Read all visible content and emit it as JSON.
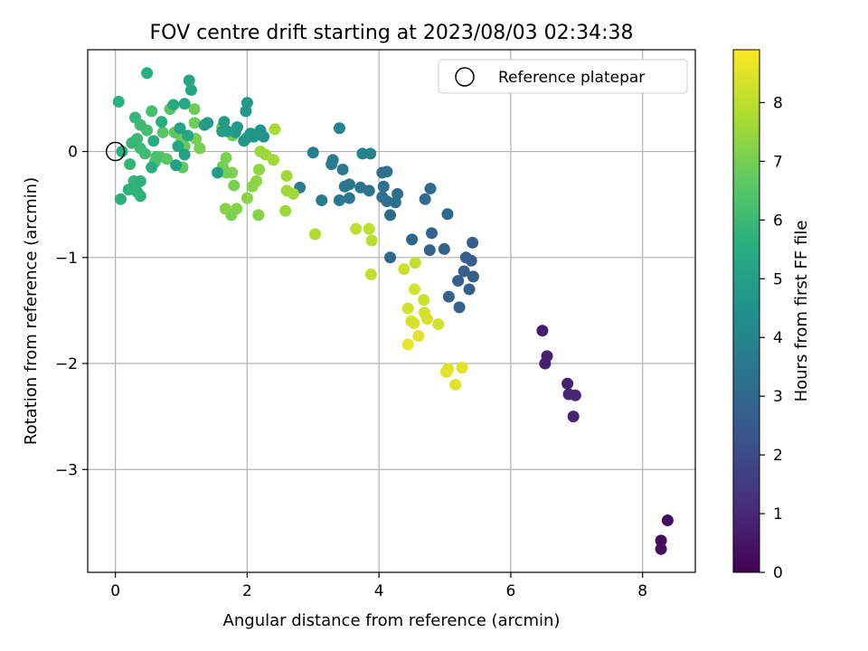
{
  "chart_data": {
    "type": "scatter",
    "title": "FOV centre drift starting at 2023/08/03 02:34:38",
    "xlabel": "Angular distance from reference (arcmin)",
    "ylabel": "Rotation from reference (arcmin)",
    "colorbar_label": "Hours from first FF file",
    "xlim": [
      -0.42,
      8.8
    ],
    "ylim": [
      -3.97,
      0.96
    ],
    "xticks": [
      0,
      2,
      4,
      6,
      8
    ],
    "yticks": [
      0,
      -1,
      -2,
      -3
    ],
    "colorbar_range": [
      0,
      8.9
    ],
    "colorbar_ticks": [
      0,
      1,
      2,
      3,
      4,
      5,
      6,
      7,
      8
    ],
    "grid": true,
    "colormap": "viridis",
    "legend": {
      "position": "top-right",
      "label": "Reference platepar"
    },
    "reference_point": {
      "x": 0,
      "y": 0
    },
    "points": [
      {
        "x": 8.38,
        "y": -3.48,
        "h": 0.3
      },
      {
        "x": 8.28,
        "y": -3.67,
        "h": 0.3
      },
      {
        "x": 8.28,
        "y": -3.75,
        "h": 0.3
      },
      {
        "x": 6.48,
        "y": -1.69,
        "h": 0.7
      },
      {
        "x": 6.55,
        "y": -1.93,
        "h": 0.8
      },
      {
        "x": 6.52,
        "y": -2.0,
        "h": 0.8
      },
      {
        "x": 6.86,
        "y": -2.19,
        "h": 0.8
      },
      {
        "x": 6.88,
        "y": -2.29,
        "h": 0.9
      },
      {
        "x": 6.98,
        "y": -2.3,
        "h": 0.9
      },
      {
        "x": 6.95,
        "y": -2.5,
        "h": 0.9
      },
      {
        "x": 5.42,
        "y": -0.86,
        "h": 2.6
      },
      {
        "x": 5.32,
        "y": -1.0,
        "h": 2.6
      },
      {
        "x": 5.4,
        "y": -1.03,
        "h": 2.6
      },
      {
        "x": 5.29,
        "y": -1.13,
        "h": 2.7
      },
      {
        "x": 5.43,
        "y": -1.18,
        "h": 2.7
      },
      {
        "x": 5.2,
        "y": -1.22,
        "h": 2.7
      },
      {
        "x": 5.37,
        "y": -1.3,
        "h": 2.7
      },
      {
        "x": 5.06,
        "y": -1.37,
        "h": 2.8
      },
      {
        "x": 5.22,
        "y": -1.47,
        "h": 2.8
      },
      {
        "x": 4.99,
        "y": -0.92,
        "h": 2.8
      },
      {
        "x": 4.77,
        "y": -0.93,
        "h": 2.8
      },
      {
        "x": 4.8,
        "y": -0.77,
        "h": 2.9
      },
      {
        "x": 4.5,
        "y": -0.83,
        "h": 2.9
      },
      {
        "x": 5.04,
        "y": -0.59,
        "h": 3.0
      },
      {
        "x": 4.17,
        "y": -1.0,
        "h": 3.0
      },
      {
        "x": 4.7,
        "y": -0.45,
        "h": 3.1
      },
      {
        "x": 4.78,
        "y": -0.35,
        "h": 3.1
      },
      {
        "x": 4.17,
        "y": -0.6,
        "h": 3.1
      },
      {
        "x": 4.25,
        "y": -0.48,
        "h": 3.2
      },
      {
        "x": 4.28,
        "y": -0.4,
        "h": 3.2
      },
      {
        "x": 4.05,
        "y": -0.43,
        "h": 3.2
      },
      {
        "x": 4.12,
        "y": -0.47,
        "h": 3.3
      },
      {
        "x": 4.07,
        "y": -0.33,
        "h": 3.3
      },
      {
        "x": 4.05,
        "y": -0.2,
        "h": 3.3
      },
      {
        "x": 4.12,
        "y": -0.19,
        "h": 3.3
      },
      {
        "x": 3.85,
        "y": -0.37,
        "h": 3.4
      },
      {
        "x": 3.72,
        "y": -0.34,
        "h": 3.4
      },
      {
        "x": 3.55,
        "y": -0.31,
        "h": 3.5
      },
      {
        "x": 3.48,
        "y": -0.33,
        "h": 3.5
      },
      {
        "x": 3.55,
        "y": -0.44,
        "h": 3.5
      },
      {
        "x": 3.4,
        "y": -0.46,
        "h": 3.6
      },
      {
        "x": 3.45,
        "y": -0.17,
        "h": 3.6
      },
      {
        "x": 3.3,
        "y": -0.08,
        "h": 3.6
      },
      {
        "x": 3.28,
        "y": -0.12,
        "h": 3.7
      },
      {
        "x": 3.13,
        "y": -0.46,
        "h": 3.7
      },
      {
        "x": 3.0,
        "y": -0.01,
        "h": 3.8
      },
      {
        "x": 2.8,
        "y": -0.34,
        "h": 3.8
      },
      {
        "x": 3.4,
        "y": 0.22,
        "h": 4.0
      },
      {
        "x": 3.75,
        "y": -0.02,
        "h": 4.0
      },
      {
        "x": 3.87,
        "y": -0.02,
        "h": 4.0
      },
      {
        "x": 5.16,
        "y": -2.2,
        "h": 8.5
      },
      {
        "x": 5.02,
        "y": -2.08,
        "h": 8.5
      },
      {
        "x": 5.05,
        "y": -2.05,
        "h": 8.5
      },
      {
        "x": 5.26,
        "y": -2.04,
        "h": 8.5
      },
      {
        "x": 4.6,
        "y": -1.74,
        "h": 8.5
      },
      {
        "x": 4.44,
        "y": -1.82,
        "h": 8.6
      },
      {
        "x": 4.49,
        "y": -1.6,
        "h": 8.4
      },
      {
        "x": 4.53,
        "y": -1.62,
        "h": 8.4
      },
      {
        "x": 4.73,
        "y": -1.58,
        "h": 8.4
      },
      {
        "x": 4.69,
        "y": -1.52,
        "h": 8.3
      },
      {
        "x": 4.44,
        "y": -1.48,
        "h": 8.3
      },
      {
        "x": 4.9,
        "y": -1.63,
        "h": 8.3
      },
      {
        "x": 4.68,
        "y": -1.4,
        "h": 8.2
      },
      {
        "x": 4.54,
        "y": -1.3,
        "h": 8.3
      },
      {
        "x": 4.38,
        "y": -1.11,
        "h": 8.2
      },
      {
        "x": 4.55,
        "y": -1.05,
        "h": 8.1
      },
      {
        "x": 3.88,
        "y": -1.16,
        "h": 8.1
      },
      {
        "x": 3.89,
        "y": -0.84,
        "h": 8.0
      },
      {
        "x": 3.85,
        "y": -0.73,
        "h": 8.0
      },
      {
        "x": 3.65,
        "y": -0.73,
        "h": 8.0
      },
      {
        "x": 3.03,
        "y": -0.78,
        "h": 7.8
      },
      {
        "x": 2.6,
        "y": -0.37,
        "h": 7.6
      },
      {
        "x": 2.7,
        "y": -0.4,
        "h": 7.6
      },
      {
        "x": 2.6,
        "y": -0.23,
        "h": 7.6
      },
      {
        "x": 2.58,
        "y": -0.56,
        "h": 7.5
      },
      {
        "x": 2.4,
        "y": -0.08,
        "h": 7.6
      },
      {
        "x": 2.28,
        "y": -0.03,
        "h": 7.6
      },
      {
        "x": 2.2,
        "y": 0.0,
        "h": 7.5
      },
      {
        "x": 2.42,
        "y": 0.21,
        "h": 7.7
      },
      {
        "x": 2.18,
        "y": -0.17,
        "h": 7.4
      },
      {
        "x": 2.14,
        "y": -0.28,
        "h": 7.4
      },
      {
        "x": 2.08,
        "y": -0.33,
        "h": 7.3
      },
      {
        "x": 2.0,
        "y": -0.44,
        "h": 7.3
      },
      {
        "x": 2.17,
        "y": -0.6,
        "h": 7.2
      },
      {
        "x": 1.84,
        "y": -0.54,
        "h": 7.2
      },
      {
        "x": 1.76,
        "y": -0.6,
        "h": 7.1
      },
      {
        "x": 1.67,
        "y": -0.54,
        "h": 7.2
      },
      {
        "x": 1.77,
        "y": -0.2,
        "h": 7.2
      },
      {
        "x": 1.8,
        "y": -0.32,
        "h": 7.1
      },
      {
        "x": 1.68,
        "y": -0.06,
        "h": 7.1
      },
      {
        "x": 1.63,
        "y": -0.14,
        "h": 7.0
      },
      {
        "x": 1.68,
        "y": -0.2,
        "h": 7.0
      },
      {
        "x": 1.78,
        "y": 0.15,
        "h": 7.0
      },
      {
        "x": 1.62,
        "y": 0.23,
        "h": 7.0
      },
      {
        "x": 1.28,
        "y": 0.03,
        "h": 7.0
      },
      {
        "x": 1.22,
        "y": 0.12,
        "h": 7.0
      },
      {
        "x": 1.2,
        "y": 0.27,
        "h": 6.9
      },
      {
        "x": 1.2,
        "y": 0.4,
        "h": 6.9
      },
      {
        "x": 1.0,
        "y": 0.12,
        "h": 6.8
      },
      {
        "x": 1.05,
        "y": 0.05,
        "h": 6.8
      },
      {
        "x": 1.02,
        "y": -0.15,
        "h": 6.7
      },
      {
        "x": 0.78,
        "y": -0.07,
        "h": 6.6
      },
      {
        "x": 0.9,
        "y": 0.18,
        "h": 6.6
      },
      {
        "x": 0.83,
        "y": 0.4,
        "h": 6.5
      },
      {
        "x": 0.72,
        "y": 0.18,
        "h": 6.5
      },
      {
        "x": 0.68,
        "y": -0.05,
        "h": 6.5
      },
      {
        "x": 0.6,
        "y": -0.1,
        "h": 6.4
      },
      {
        "x": 0.62,
        "y": -0.05,
        "h": 6.3
      },
      {
        "x": 0.55,
        "y": 0.38,
        "h": 6.2
      },
      {
        "x": 0.48,
        "y": 0.2,
        "h": 6.2
      },
      {
        "x": 0.45,
        "y": -0.02,
        "h": 6.1
      },
      {
        "x": 0.38,
        "y": 0.03,
        "h": 6.1
      },
      {
        "x": 0.33,
        "y": 0.12,
        "h": 6.0
      },
      {
        "x": 0.38,
        "y": 0.25,
        "h": 6.0
      },
      {
        "x": 0.3,
        "y": 0.32,
        "h": 5.9
      },
      {
        "x": 0.25,
        "y": 0.08,
        "h": 5.9
      },
      {
        "x": 0.22,
        "y": -0.12,
        "h": 5.8
      },
      {
        "x": 0.28,
        "y": -0.28,
        "h": 5.8
      },
      {
        "x": 0.38,
        "y": -0.28,
        "h": 5.7
      },
      {
        "x": 0.33,
        "y": -0.38,
        "h": 5.7
      },
      {
        "x": 0.38,
        "y": -0.42,
        "h": 5.7
      },
      {
        "x": 0.2,
        "y": -0.36,
        "h": 5.7
      },
      {
        "x": 0.1,
        "y": 0.0,
        "h": 5.6
      },
      {
        "x": 0.05,
        "y": 0.47,
        "h": 5.6
      },
      {
        "x": 0.08,
        "y": -0.45,
        "h": 5.6
      },
      {
        "x": 0.48,
        "y": 0.74,
        "h": 5.5
      },
      {
        "x": 0.55,
        "y": -0.15,
        "h": 5.5
      },
      {
        "x": 0.58,
        "y": 0.1,
        "h": 5.5
      },
      {
        "x": 0.7,
        "y": 0.28,
        "h": 5.5
      },
      {
        "x": 0.88,
        "y": 0.44,
        "h": 5.4
      },
      {
        "x": 0.95,
        "y": 0.05,
        "h": 5.3
      },
      {
        "x": 1.05,
        "y": 0.45,
        "h": 5.3
      },
      {
        "x": 1.12,
        "y": 0.67,
        "h": 5.2
      },
      {
        "x": 1.15,
        "y": 0.58,
        "h": 5.2
      },
      {
        "x": 1.1,
        "y": 0.15,
        "h": 5.2
      },
      {
        "x": 1.05,
        "y": -0.03,
        "h": 5.1
      },
      {
        "x": 0.98,
        "y": 0.22,
        "h": 5.1
      },
      {
        "x": 0.92,
        "y": -0.13,
        "h": 5.0
      },
      {
        "x": 1.35,
        "y": 0.25,
        "h": 5.0
      },
      {
        "x": 1.4,
        "y": 0.27,
        "h": 4.9
      },
      {
        "x": 1.55,
        "y": -0.2,
        "h": 4.9
      },
      {
        "x": 1.62,
        "y": 0.19,
        "h": 4.9
      },
      {
        "x": 1.82,
        "y": 0.18,
        "h": 4.8
      },
      {
        "x": 1.85,
        "y": 0.23,
        "h": 4.8
      },
      {
        "x": 1.95,
        "y": 0.1,
        "h": 4.8
      },
      {
        "x": 2.0,
        "y": 0.13,
        "h": 4.7
      },
      {
        "x": 2.05,
        "y": 0.17,
        "h": 4.7
      },
      {
        "x": 2.1,
        "y": 0.14,
        "h": 4.6
      },
      {
        "x": 2.2,
        "y": 0.2,
        "h": 4.6
      },
      {
        "x": 2.25,
        "y": 0.14,
        "h": 4.6
      },
      {
        "x": 1.98,
        "y": 0.38,
        "h": 4.7
      },
      {
        "x": 2.0,
        "y": 0.46,
        "h": 4.7
      },
      {
        "x": 1.65,
        "y": 0.28,
        "h": 4.9
      },
      {
        "x": 1.7,
        "y": 0.19,
        "h": 4.9
      }
    ]
  }
}
